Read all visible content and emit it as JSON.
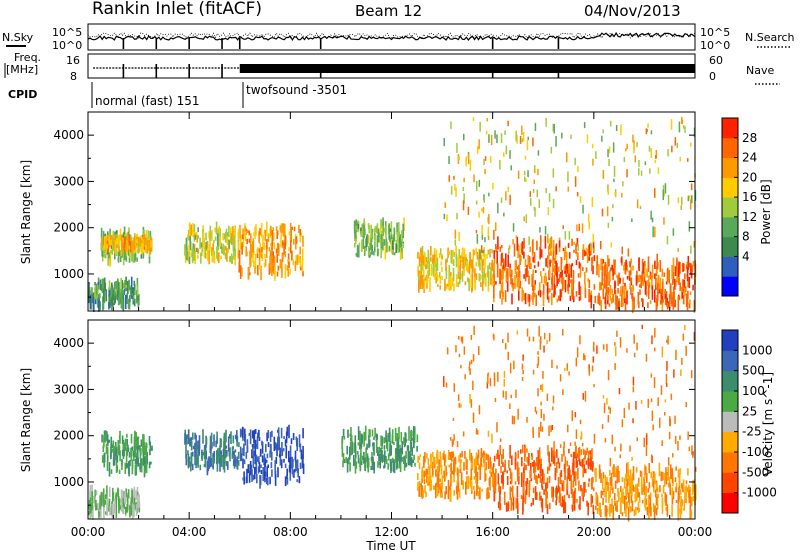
{
  "header": {
    "title": "Rankin Inlet (fitACF)",
    "beam": "Beam 12",
    "date": "04/Nov/2013"
  },
  "top_panel": {
    "nsky_label": "N.Sky",
    "nsearch_label": "N.Search",
    "freq_label_1": "Freq.",
    "freq_label_2": "[MHz]",
    "nave_label": "Nave",
    "cpid_label": "CPID",
    "left_tick_top": "10^5",
    "left_tick_bottom": "10^0",
    "right_tick_top": "10^5",
    "right_tick_bottom": "10^0",
    "freq_tick_top": "16",
    "freq_tick_bottom": "8",
    "nave_tick_top": "60",
    "nave_tick_bottom": "0",
    "cpid_1": "normal (fast) 151",
    "cpid_2": "twofsound -3501"
  },
  "power_colorbar": {
    "label": "Power [dB]",
    "ticks": [
      "28",
      "24",
      "20",
      "16",
      "12",
      "8",
      "4"
    ],
    "colors": [
      "#0000ff",
      "#2e5fbf",
      "#3c8a4e",
      "#5aa85a",
      "#a0cc3c",
      "#ffcc00",
      "#ff9900",
      "#ff6600",
      "#ff2200"
    ]
  },
  "velocity_colorbar": {
    "label": "Velocity [m s^-1]",
    "ticks": [
      "1000",
      "500",
      "100",
      "25",
      "-25",
      "-100",
      "-500",
      "-1000"
    ],
    "colors": [
      "#2040c0",
      "#3c66b8",
      "#3c8c6e",
      "#4caa44",
      "#bbbbbb",
      "#ffaa00",
      "#ff7700",
      "#ff4400",
      "#ff0000"
    ]
  },
  "axes": {
    "y_label": "Slant Range [km]",
    "y_ticks": [
      "4000",
      "3000",
      "2000",
      "1000"
    ],
    "x_label": "Time UT",
    "x_ticks": [
      "00:00",
      "04:00",
      "08:00",
      "12:00",
      "16:00",
      "20:00",
      "00:00"
    ]
  },
  "chart_data": {
    "type": "heatmap",
    "x_unit": "hours UT",
    "xlim": [
      0,
      24
    ],
    "ylim": [
      200,
      4500
    ],
    "panels": [
      {
        "name": "power",
        "regions": [
          {
            "t0": 0.5,
            "t1": 2.5,
            "r0": 1300,
            "r1": 1900,
            "value": 14
          },
          {
            "t0": 0.5,
            "t1": 2.5,
            "r0": 1550,
            "r1": 1750,
            "value": 22
          },
          {
            "t0": 3.8,
            "t1": 5.8,
            "r0": 1300,
            "r1": 2000,
            "value": 18
          },
          {
            "t0": 5.9,
            "t1": 8.5,
            "r0": 1000,
            "r1": 2000,
            "value": 24
          },
          {
            "t0": 10.5,
            "t1": 12.5,
            "r0": 1400,
            "r1": 2100,
            "value": 14
          },
          {
            "t0": 13,
            "t1": 16,
            "r0": 700,
            "r1": 1500,
            "value": 20
          },
          {
            "t0": 16,
            "t1": 20,
            "r0": 400,
            "r1": 1700,
            "value": 28
          },
          {
            "t0": 20,
            "t1": 24,
            "r0": 300,
            "r1": 1300,
            "value": 28
          },
          {
            "t0": 0,
            "t1": 2,
            "r0": 300,
            "r1": 800,
            "value": 10
          }
        ]
      },
      {
        "name": "velocity",
        "regions": [
          {
            "t0": 0.5,
            "t1": 2.5,
            "r0": 1200,
            "r1": 2000,
            "value": 100
          },
          {
            "t0": 3.8,
            "t1": 6,
            "r0": 1300,
            "r1": 2000,
            "value": 500
          },
          {
            "t0": 6,
            "t1": 8.5,
            "r0": 1000,
            "r1": 2100,
            "value": 1000
          },
          {
            "t0": 10,
            "t1": 13,
            "r0": 1300,
            "r1": 2100,
            "value": 100
          },
          {
            "t0": 13,
            "t1": 16,
            "r0": 700,
            "r1": 1600,
            "value": -100
          },
          {
            "t0": 16,
            "t1": 20,
            "r0": 400,
            "r1": 1700,
            "value": -500
          },
          {
            "t0": 20,
            "t1": 24,
            "r0": 300,
            "r1": 1300,
            "value": -100
          },
          {
            "t0": 0,
            "t1": 2,
            "r0": 300,
            "r1": 800,
            "value": 25
          }
        ]
      }
    ]
  }
}
